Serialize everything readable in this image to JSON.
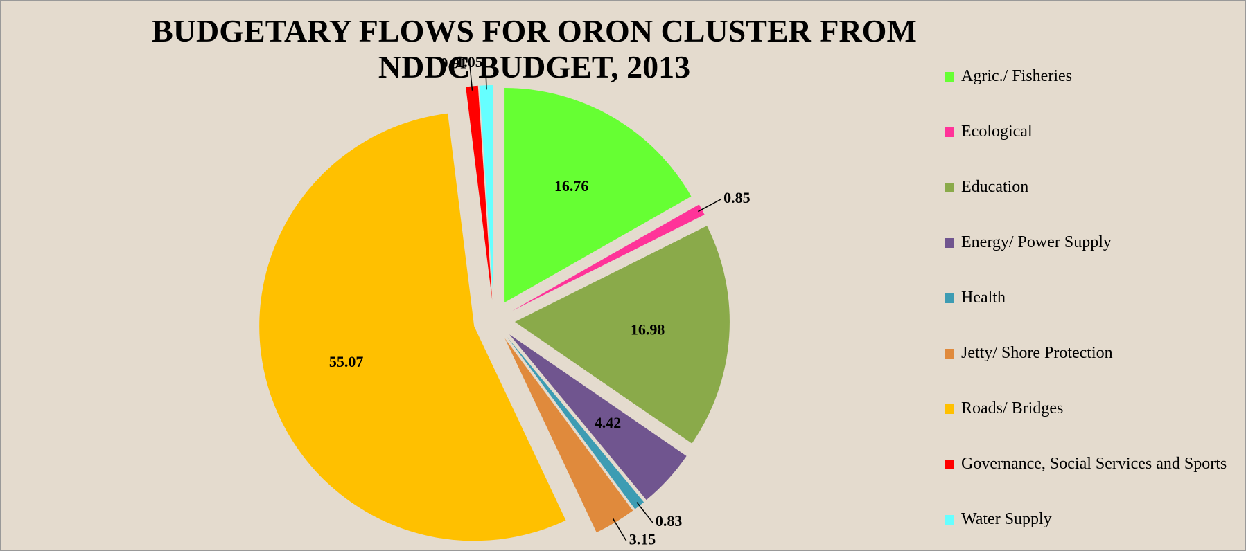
{
  "chart_data": {
    "type": "pie",
    "title": "BUDGETARY FLOWS FOR ORON CLUSTER FROM NDDC BUDGET, 2013",
    "categories": [
      "Agric./ Fisheries",
      "Ecological",
      "Education",
      "Energy/ Power Supply",
      "Health",
      "Jetty/ Shore Protection",
      "Roads/ Bridges",
      "Governance, Social Services and Sports",
      "Water Supply"
    ],
    "values": [
      16.76,
      0.85,
      16.98,
      4.42,
      0.83,
      3.15,
      55.07,
      0.91,
      1.05
    ],
    "colors": [
      "#66ff33",
      "#ff3399",
      "#8aaa4a",
      "#70558f",
      "#3d9cb3",
      "#e08a3c",
      "#ffc000",
      "#ff0000",
      "#66ffff"
    ],
    "legend": "right"
  }
}
